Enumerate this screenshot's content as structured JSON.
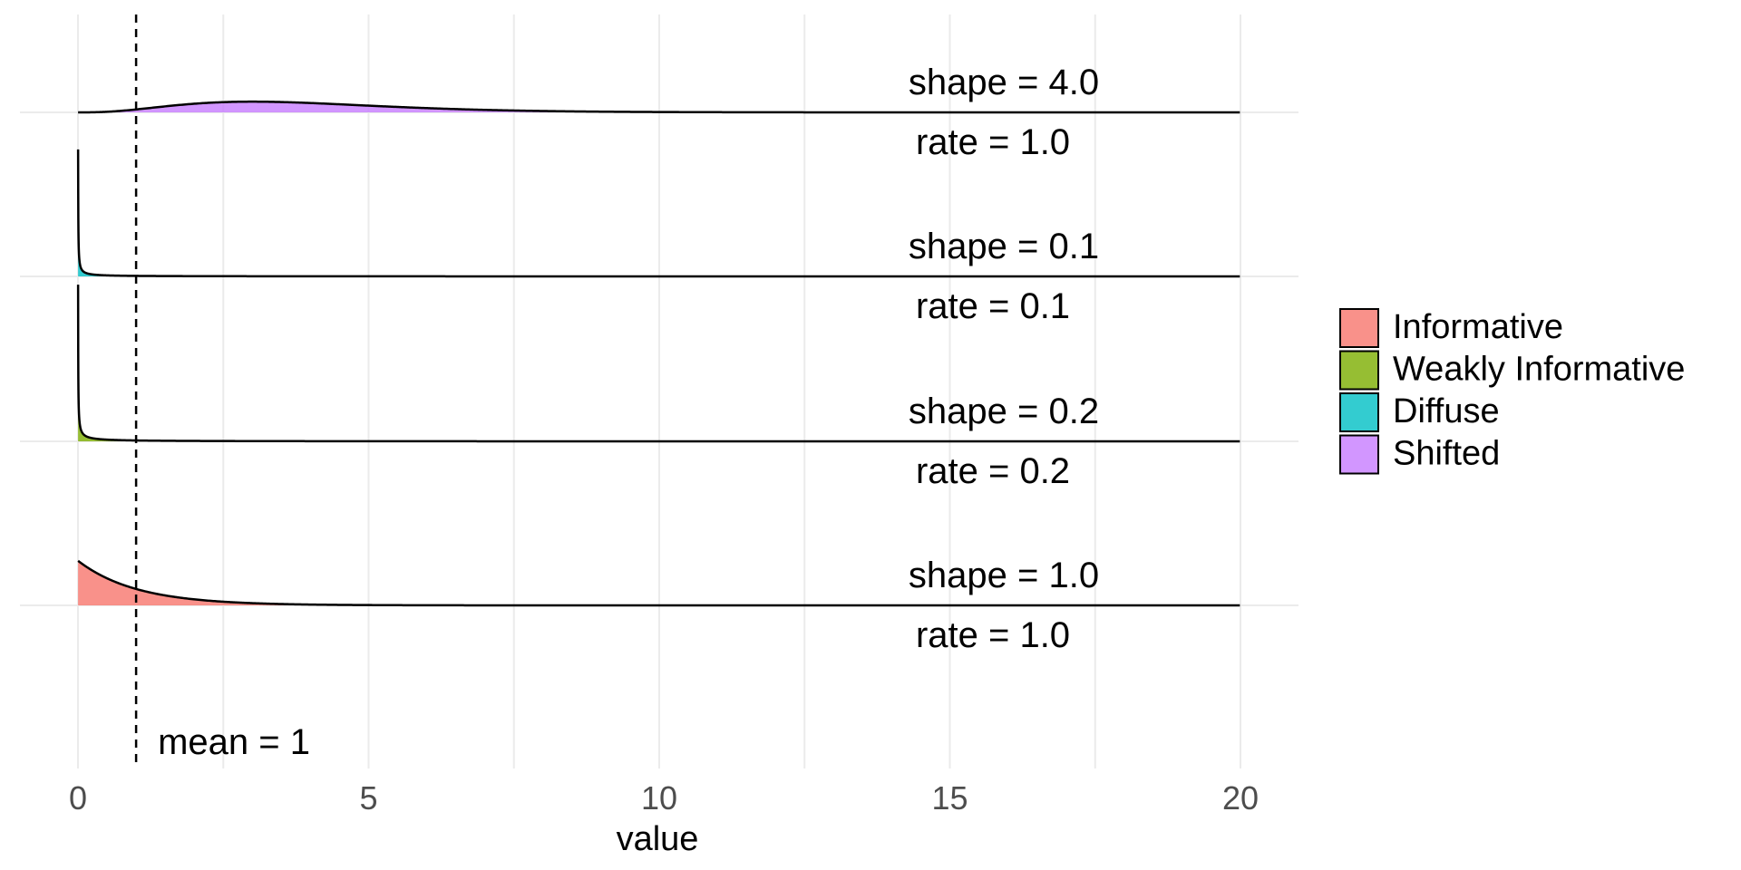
{
  "chart_data": {
    "type": "area",
    "subtype": "ridgeline-density",
    "distribution": "gamma",
    "xlabel": "value",
    "ylabel": "",
    "xlim": [
      0,
      20
    ],
    "x_ticks": [
      0,
      5,
      10,
      15,
      20
    ],
    "x_tick_labels": [
      "0",
      "5",
      "10",
      "15",
      "20"
    ],
    "grid": true,
    "legend_position": "right",
    "reference_line": {
      "x": 1,
      "style": "dashed",
      "label": "mean = 1"
    },
    "series": [
      {
        "name": "Informative",
        "shape": 1.0,
        "rate": 1.0,
        "shape_label": "shape = 1.0",
        "rate_label": "rate = 1.0",
        "color": "#F8766D"
      },
      {
        "name": "Weakly Informative",
        "shape": 0.2,
        "rate": 0.2,
        "shape_label": "shape = 0.2",
        "rate_label": "rate = 0.2",
        "color": "#7CAE00"
      },
      {
        "name": "Diffuse",
        "shape": 0.1,
        "rate": 0.1,
        "shape_label": "shape = 0.1",
        "rate_label": "rate = 0.1",
        "color": "#00BFC4"
      },
      {
        "name": "Shifted",
        "shape": 4.0,
        "rate": 1.0,
        "shape_label": "shape = 4.0",
        "rate_label": "rate = 1.0",
        "color": "#C77CFF"
      }
    ]
  }
}
